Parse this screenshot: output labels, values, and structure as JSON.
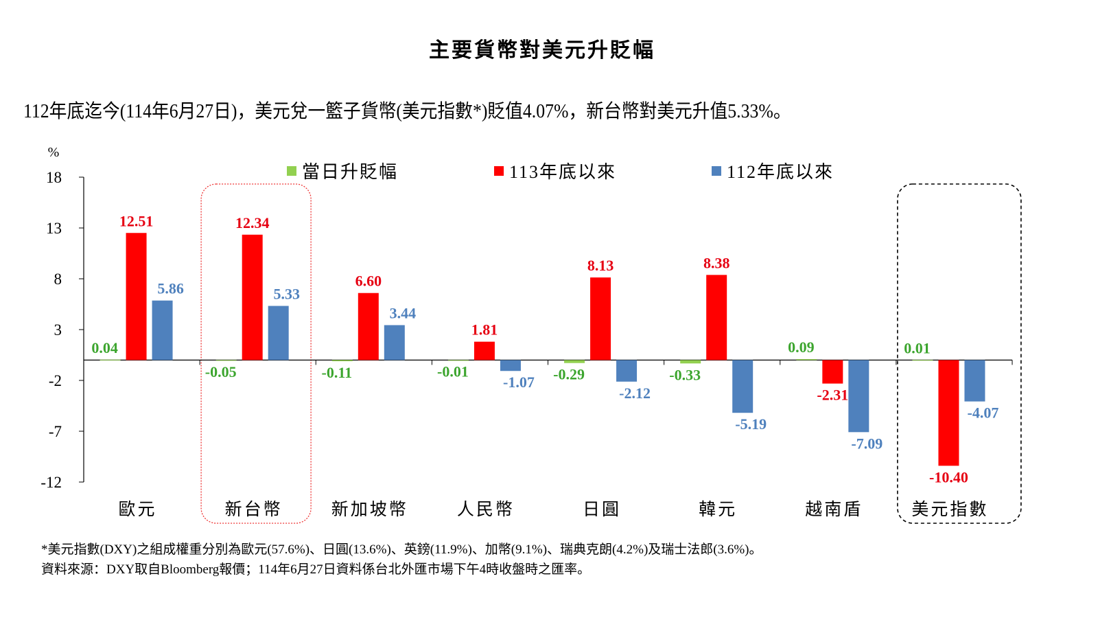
{
  "title": "主要貨幣對美元升貶幅",
  "subtitle": "112年底迄今(114年6月27日)，美元兌一籃子貨幣(美元指數*)貶值4.07%，新台幣對美元升值5.33%。",
  "footnotes": [
    "*美元指數(DXY)之組成權重分別為歐元(57.6%)、日圓(13.6%)、英鎊(11.9%)、加幣(9.1%)、瑞典克朗(4.2%)及瑞士法郎(3.6%)。",
    "資料來源：DXY取自Bloomberg報價；114年6月27日資料係台北外匯市場下午4時收盤時之匯率。"
  ],
  "chart_data": {
    "type": "bar",
    "title": "主要貨幣對美元升貶幅",
    "ylabel": "%",
    "ylim": [
      -12,
      18
    ],
    "yticks": [
      18,
      13,
      8,
      3,
      -2,
      -7,
      -12
    ],
    "grid": false,
    "legend_position": "top",
    "categories": [
      "歐元",
      "新台幣",
      "新加坡幣",
      "人民幣",
      "日圓",
      "韓元",
      "越南盾",
      "美元指數"
    ],
    "highlighted_categories": [
      "新台幣",
      "美元指數"
    ],
    "series": [
      {
        "name": "當日升貶幅",
        "color": "#92d050",
        "label_color": "#3ca52e",
        "values": [
          0.04,
          -0.05,
          -0.11,
          -0.01,
          -0.29,
          -0.33,
          0.09,
          0.01
        ]
      },
      {
        "name": "113年底以來",
        "color": "#ff0000",
        "label_color": "#e60012",
        "values": [
          12.51,
          12.34,
          6.6,
          1.81,
          8.13,
          8.38,
          -2.31,
          -10.4
        ]
      },
      {
        "name": "112年底以來",
        "color": "#4f81bd",
        "label_color": "#4f81bd",
        "values": [
          5.86,
          5.33,
          3.44,
          -1.07,
          -2.12,
          -5.19,
          -7.09,
          -4.07
        ]
      }
    ]
  }
}
